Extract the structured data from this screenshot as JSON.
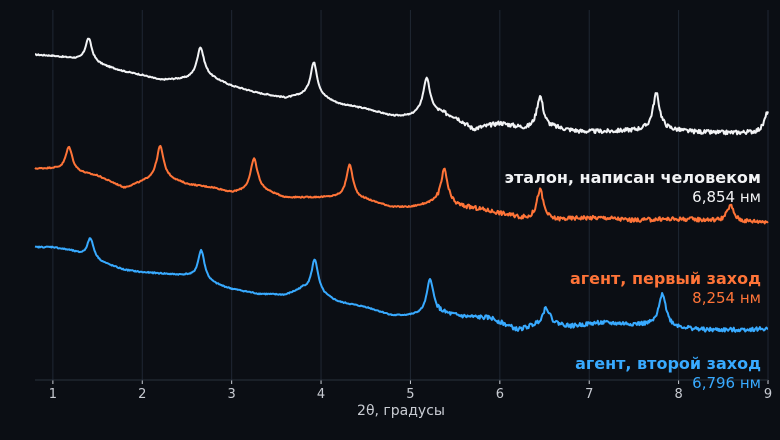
{
  "chart_data": {
    "type": "line",
    "xlabel": "2θ, градусы",
    "ylabel": "",
    "xlim": [
      0.8,
      9
    ],
    "x_ticks": [
      "1",
      "2",
      "3",
      "4",
      "5",
      "6",
      "7",
      "8",
      "9"
    ],
    "grid": "vertical",
    "y_axis_visible": false,
    "background": "#0b0e14",
    "series": [
      {
        "name": "эталон, написан человеком",
        "value_label": "6,854 нм",
        "color": "#f2f3f5",
        "baseline": [
          [
            0.8,
            4.6
          ],
          [
            1.0,
            4.5
          ],
          [
            1.2,
            4.3
          ],
          [
            1.5,
            3.8
          ],
          [
            1.8,
            3.2
          ],
          [
            2.0,
            2.9
          ],
          [
            2.2,
            2.5
          ],
          [
            2.5,
            2.6
          ],
          [
            2.7,
            2.9
          ],
          [
            3.0,
            2.0
          ],
          [
            3.3,
            1.4
          ],
          [
            3.6,
            1.0
          ],
          [
            3.9,
            1.3
          ],
          [
            4.2,
            0.5
          ],
          [
            4.5,
            0.1
          ],
          [
            4.8,
            -0.5
          ],
          [
            5.0,
            -0.5
          ],
          [
            5.2,
            0.0
          ],
          [
            5.5,
            -0.6
          ],
          [
            5.7,
            -1.6
          ],
          [
            6.0,
            -1.1
          ],
          [
            6.3,
            -1.6
          ],
          [
            6.6,
            -1.5
          ],
          [
            6.9,
            -1.8
          ],
          [
            7.2,
            -1.8
          ],
          [
            7.5,
            -1.7
          ],
          [
            7.8,
            -1.6
          ],
          [
            8.1,
            -1.8
          ],
          [
            8.4,
            -1.9
          ],
          [
            8.7,
            -1.9
          ],
          [
            9.0,
            -1.9
          ]
        ],
        "peaks": [
          [
            1.4,
            2.0
          ],
          [
            2.65,
            2.4
          ],
          [
            3.92,
            2.7
          ],
          [
            5.18,
            2.7
          ],
          [
            6.45,
            2.7
          ],
          [
            7.75,
            3.0
          ],
          [
            9.0,
            1.8
          ]
        ]
      },
      {
        "name": "агент, первый заход",
        "value_label": "8,254 нм",
        "color": "#ff7438",
        "baseline": [
          [
            0.8,
            2.6
          ],
          [
            1.0,
            2.6
          ],
          [
            1.2,
            2.4
          ],
          [
            1.5,
            2.0
          ],
          [
            1.8,
            1.0
          ],
          [
            2.0,
            1.5
          ],
          [
            2.2,
            2.0
          ],
          [
            2.5,
            1.3
          ],
          [
            2.8,
            1.0
          ],
          [
            3.0,
            0.6
          ],
          [
            3.3,
            0.9
          ],
          [
            3.6,
            0.2
          ],
          [
            3.9,
            0.2
          ],
          [
            4.2,
            0.2
          ],
          [
            4.5,
            0.0
          ],
          [
            4.8,
            -0.6
          ],
          [
            5.0,
            -0.6
          ],
          [
            5.3,
            -0.2
          ],
          [
            5.5,
            -0.5
          ],
          [
            5.8,
            -0.8
          ],
          [
            6.0,
            -1.1
          ],
          [
            6.3,
            -1.6
          ],
          [
            6.6,
            -1.7
          ],
          [
            6.9,
            -1.5
          ],
          [
            7.2,
            -1.5
          ],
          [
            7.5,
            -1.7
          ],
          [
            7.8,
            -1.6
          ],
          [
            8.1,
            -1.6
          ],
          [
            8.4,
            -1.7
          ],
          [
            8.7,
            -1.8
          ],
          [
            9.0,
            -1.8
          ]
        ],
        "peaks": [
          [
            1.18,
            2.0
          ],
          [
            2.2,
            2.5
          ],
          [
            3.25,
            2.6
          ],
          [
            4.32,
            2.8
          ],
          [
            5.38,
            2.8
          ],
          [
            6.45,
            2.5
          ],
          [
            8.58,
            1.3
          ]
        ]
      },
      {
        "name": "агент, второй заход",
        "value_label": "6,796 нм",
        "color": "#38aaff",
        "baseline": [
          [
            0.8,
            4.4
          ],
          [
            1.0,
            4.4
          ],
          [
            1.2,
            4.1
          ],
          [
            1.5,
            3.2
          ],
          [
            1.8,
            2.5
          ],
          [
            2.0,
            2.3
          ],
          [
            2.2,
            2.2
          ],
          [
            2.5,
            2.0
          ],
          [
            2.8,
            1.3
          ],
          [
            3.0,
            0.9
          ],
          [
            3.3,
            0.5
          ],
          [
            3.6,
            0.4
          ],
          [
            3.8,
            0.9
          ],
          [
            4.0,
            0.4
          ],
          [
            4.2,
            -0.2
          ],
          [
            4.5,
            -0.6
          ],
          [
            4.8,
            -1.3
          ],
          [
            5.0,
            -1.3
          ],
          [
            5.3,
            -1.1
          ],
          [
            5.6,
            -1.4
          ],
          [
            5.9,
            -1.5
          ],
          [
            6.2,
            -2.5
          ],
          [
            6.5,
            -1.9
          ],
          [
            6.8,
            -2.2
          ],
          [
            7.1,
            -1.9
          ],
          [
            7.4,
            -2.0
          ],
          [
            7.7,
            -2.1
          ],
          [
            8.0,
            -2.3
          ],
          [
            8.3,
            -2.5
          ],
          [
            8.6,
            -2.5
          ],
          [
            9.0,
            -2.4
          ]
        ],
        "peaks": [
          [
            1.42,
            1.7
          ],
          [
            2.66,
            2.5
          ],
          [
            3.93,
            2.8
          ],
          [
            5.22,
            2.9
          ],
          [
            6.52,
            1.3
          ],
          [
            7.82,
            2.8
          ]
        ]
      }
    ]
  }
}
